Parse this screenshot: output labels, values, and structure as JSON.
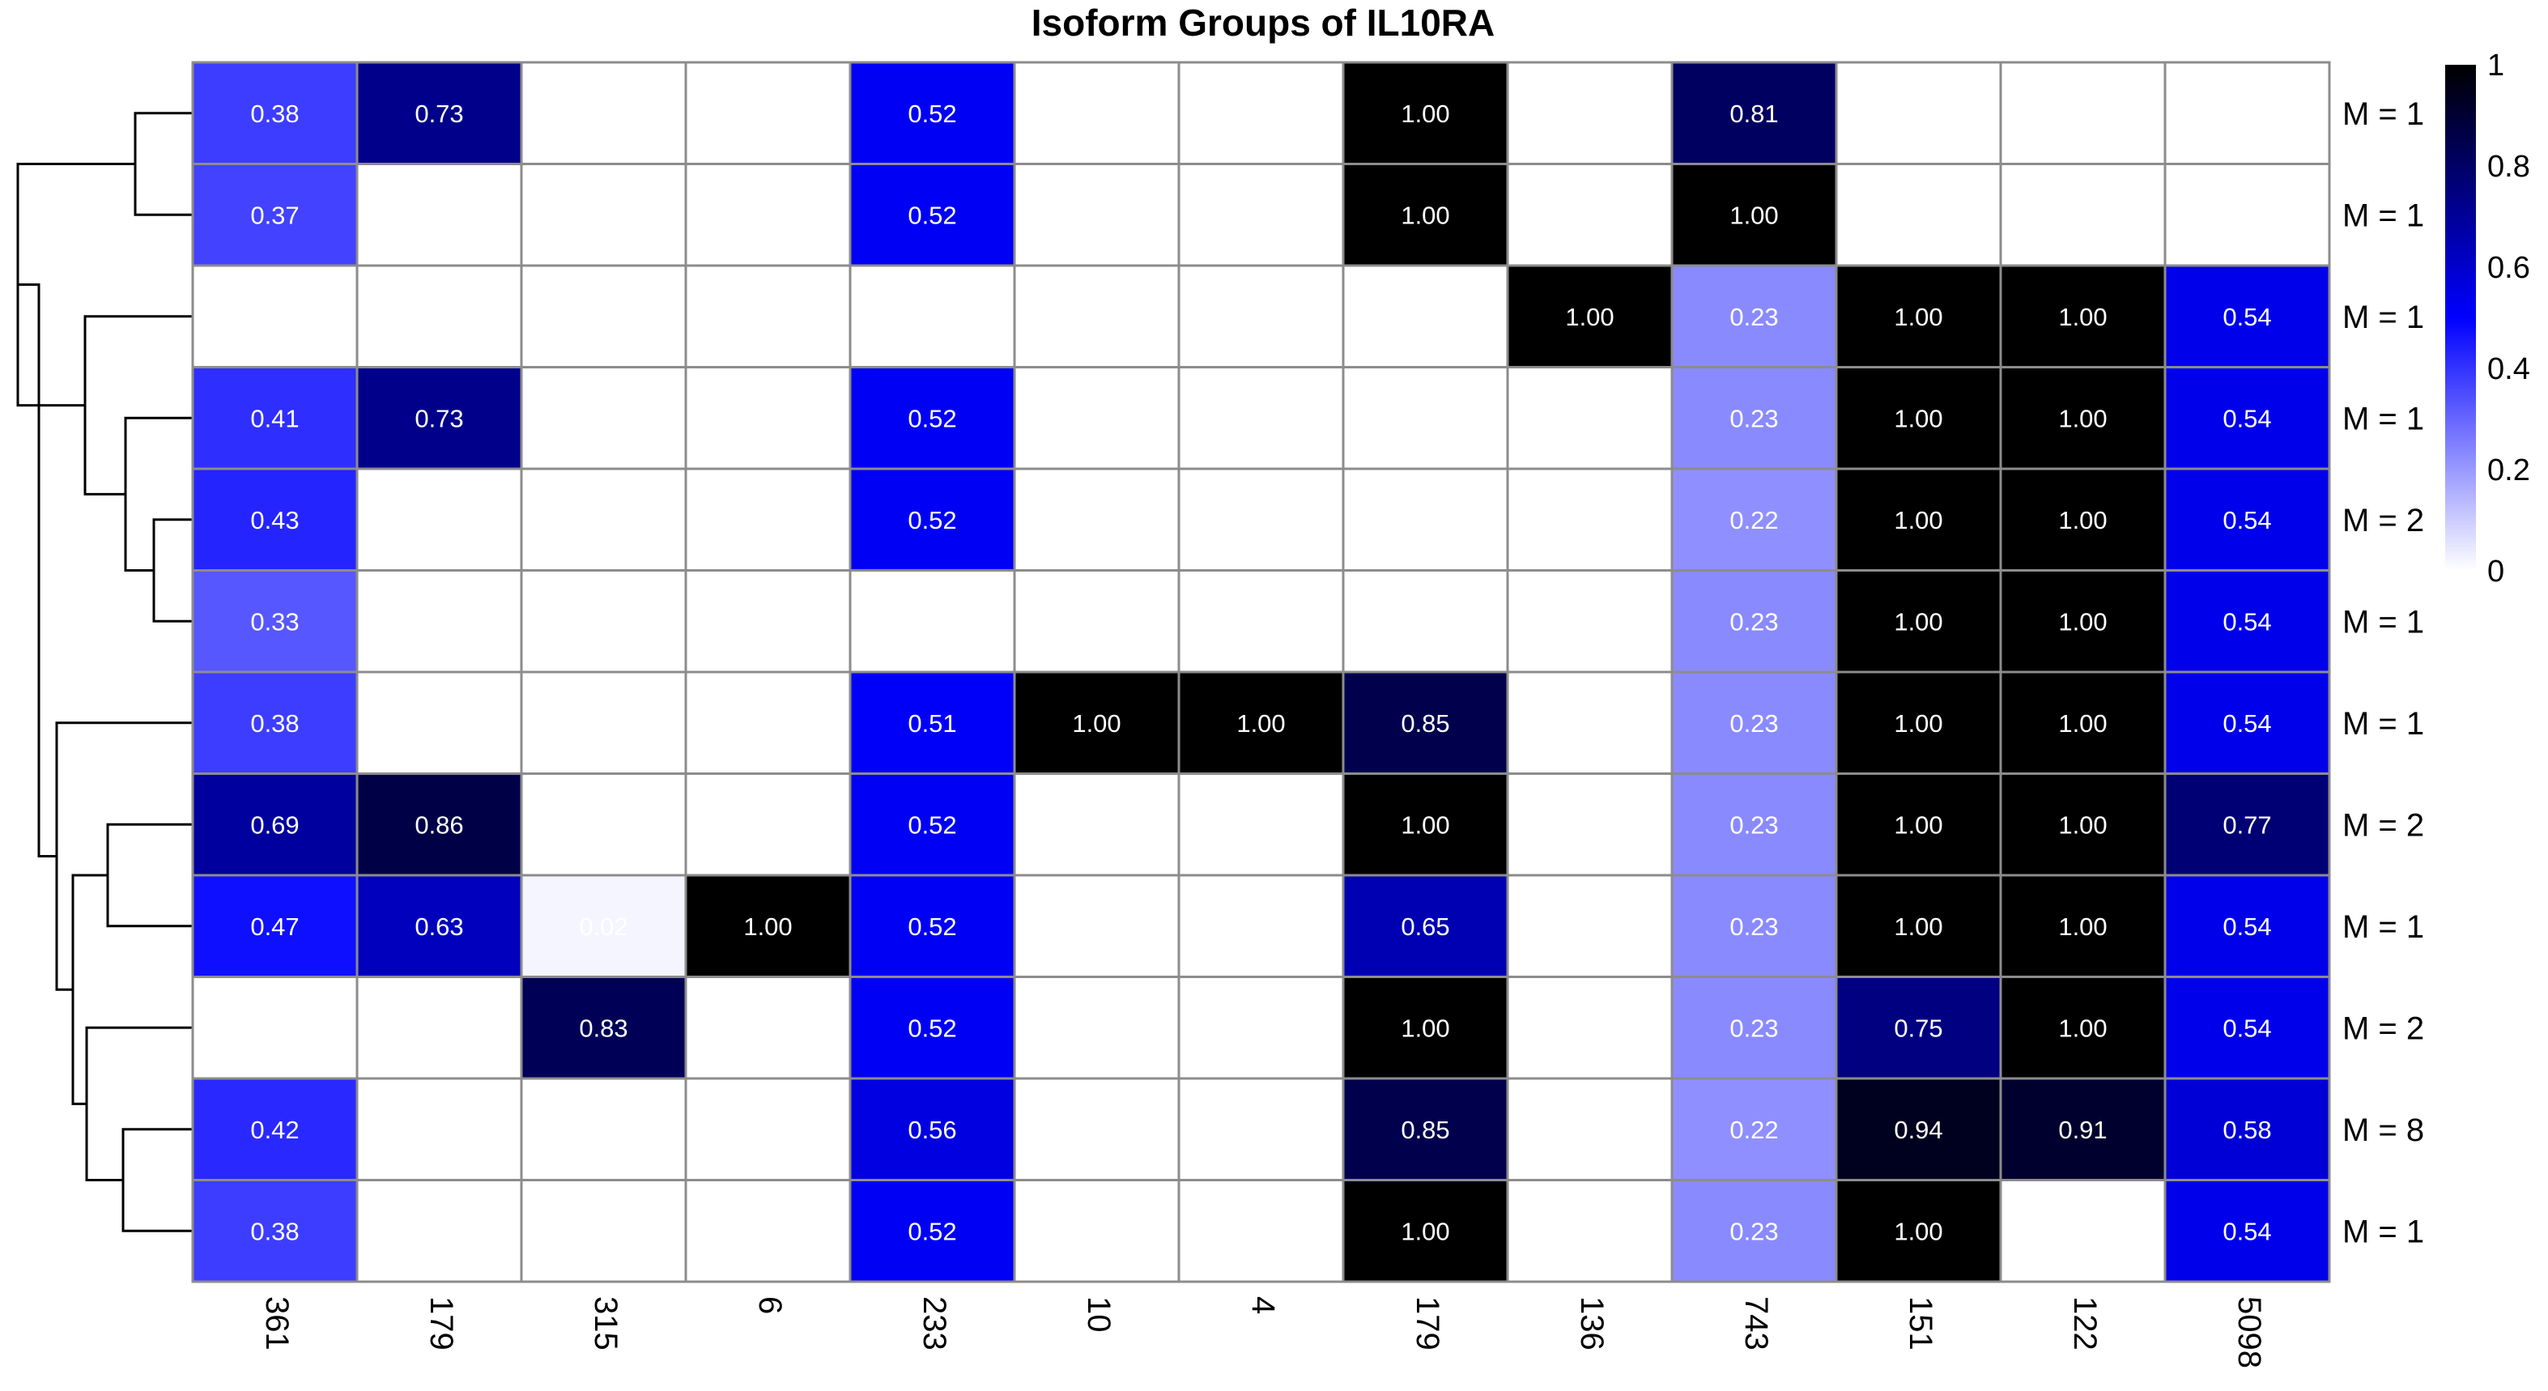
{
  "chart_data": {
    "type": "heatmap",
    "title": "Isoform Groups of IL10RA",
    "columns": [
      "361",
      "179",
      "315",
      "6",
      "233",
      "10",
      "4",
      "179",
      "136",
      "743",
      "151",
      "122",
      "5098"
    ],
    "row_labels": [
      "M = 1",
      "M = 1",
      "M = 1",
      "M = 1",
      "M = 2",
      "M = 1",
      "M = 1",
      "M = 2",
      "M = 1",
      "M = 2",
      "M = 8",
      "M = 1"
    ],
    "values": [
      [
        0.38,
        0.73,
        null,
        null,
        0.52,
        null,
        null,
        1.0,
        null,
        0.81,
        null,
        null,
        null
      ],
      [
        0.37,
        null,
        null,
        null,
        0.52,
        null,
        null,
        1.0,
        null,
        1.0,
        null,
        null,
        null
      ],
      [
        null,
        null,
        null,
        null,
        null,
        null,
        null,
        null,
        1.0,
        0.23,
        1.0,
        1.0,
        0.54
      ],
      [
        0.41,
        0.73,
        null,
        null,
        0.52,
        null,
        null,
        null,
        null,
        0.23,
        1.0,
        1.0,
        0.54
      ],
      [
        0.43,
        null,
        null,
        null,
        0.52,
        null,
        null,
        null,
        null,
        0.22,
        1.0,
        1.0,
        0.54
      ],
      [
        0.33,
        null,
        null,
        null,
        null,
        null,
        null,
        null,
        null,
        0.23,
        1.0,
        1.0,
        0.54
      ],
      [
        0.38,
        null,
        null,
        null,
        0.51,
        1.0,
        1.0,
        0.85,
        null,
        0.23,
        1.0,
        1.0,
        0.54
      ],
      [
        0.69,
        0.86,
        null,
        null,
        0.52,
        null,
        null,
        1.0,
        null,
        0.23,
        1.0,
        1.0,
        0.77
      ],
      [
        0.47,
        0.63,
        0.02,
        1.0,
        0.52,
        null,
        null,
        0.65,
        null,
        0.23,
        1.0,
        1.0,
        0.54
      ],
      [
        null,
        null,
        0.83,
        null,
        0.52,
        null,
        null,
        1.0,
        null,
        0.23,
        0.75,
        1.0,
        0.54
      ],
      [
        0.42,
        null,
        null,
        null,
        0.56,
        null,
        null,
        0.85,
        null,
        0.22,
        0.94,
        0.91,
        0.58
      ],
      [
        0.38,
        null,
        null,
        null,
        0.52,
        null,
        null,
        1.0,
        null,
        0.23,
        1.0,
        null,
        0.54
      ]
    ],
    "color_scale": {
      "stops": [
        "#ffffff",
        "#0000ff",
        "#000000"
      ],
      "range": [
        0,
        1
      ]
    },
    "colorbar_ticks": [
      "0",
      "0.2",
      "0.4",
      "0.6",
      "0.8",
      "1"
    ],
    "dendrogram": "row clustering tree on left",
    "grid": true,
    "legend_position": "top-right"
  }
}
